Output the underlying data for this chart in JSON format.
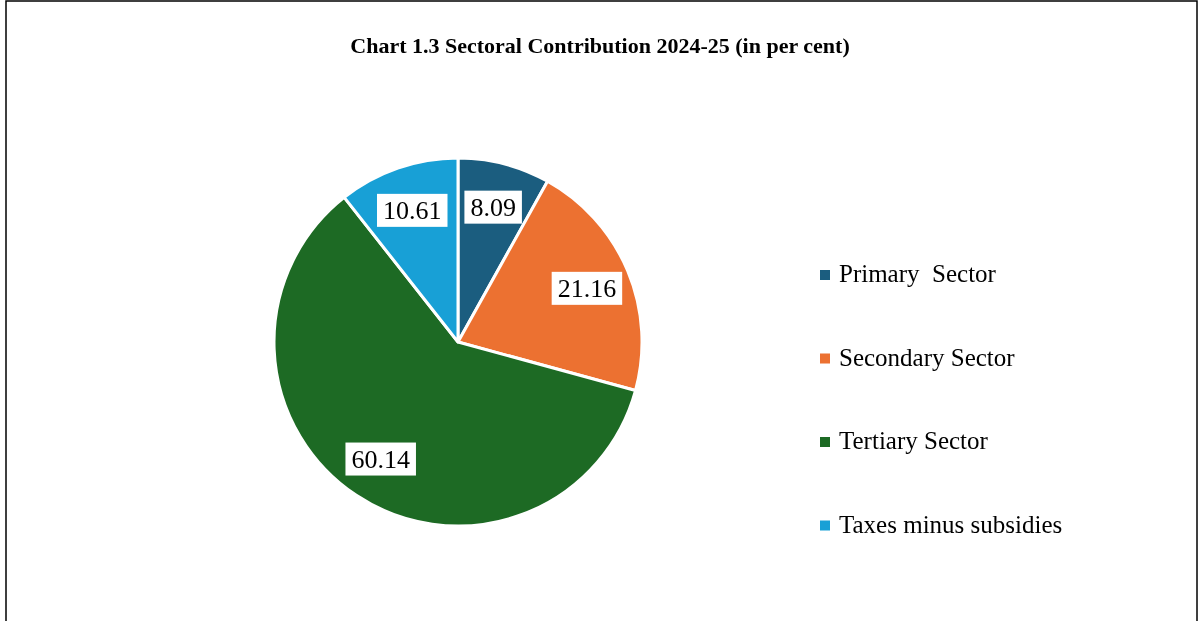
{
  "chart_data": {
    "type": "pie",
    "title": "Chart 1.3 Sectoral Contribution 2024-25 (in per cent)",
    "categories": [
      "Primary  Sector",
      "Secondary Sector",
      "Tertiary Sector",
      "Taxes minus subsidies"
    ],
    "values": [
      8.09,
      21.16,
      60.14,
      10.61
    ],
    "colors": [
      "#1b5d7f",
      "#ec7131",
      "#1d6a24",
      "#18a0d6"
    ],
    "data_labels": true,
    "legend": "right"
  }
}
